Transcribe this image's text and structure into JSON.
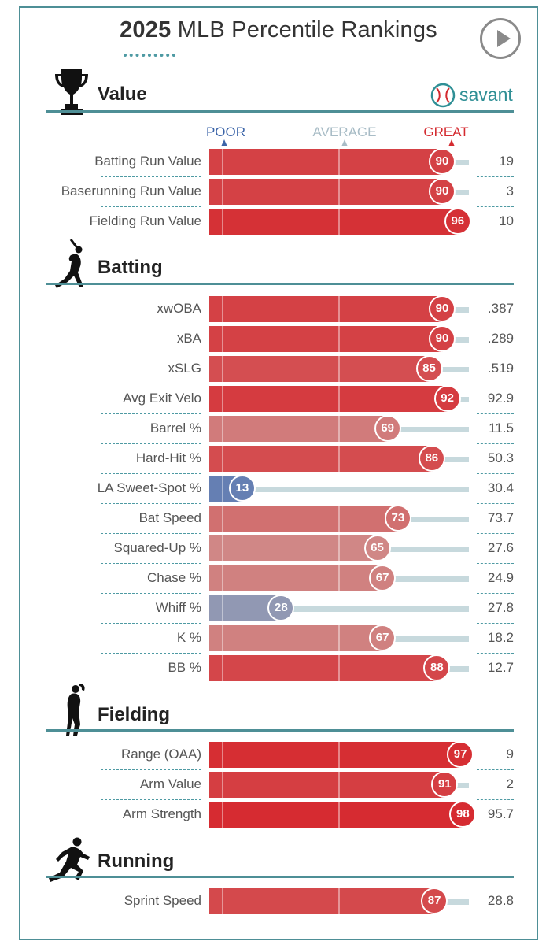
{
  "header": {
    "title_year": "2025",
    "title_rest": "MLB Percentile Rankings",
    "brand": "savant",
    "play_icon": "play-icon"
  },
  "scale": {
    "poor_label": "POOR",
    "average_label": "AVERAGE",
    "great_label": "GREAT",
    "poor_color": "#3b64a8",
    "average_color": "#a8bcc6",
    "great_color": "#d42a2f"
  },
  "sections": [
    {
      "title": "Value",
      "icon": "trophy-icon"
    },
    {
      "title": "Batting",
      "icon": "batter-silhouette-icon"
    },
    {
      "title": "Fielding",
      "icon": "fielder-silhouette-icon"
    },
    {
      "title": "Running",
      "icon": "runner-silhouette-icon"
    }
  ],
  "chart_data": {
    "type": "bar",
    "title": "2025 MLB Percentile Rankings",
    "xlim": [
      0,
      100
    ],
    "scale_labels": [
      "POOR",
      "AVERAGE",
      "GREAT"
    ],
    "groups": [
      {
        "name": "Value",
        "metrics": [
          {
            "label": "Batting Run Value",
            "percentile": 90,
            "value": "19"
          },
          {
            "label": "Baserunning Run Value",
            "percentile": 90,
            "value": "3"
          },
          {
            "label": "Fielding Run Value",
            "percentile": 96,
            "value": "10"
          }
        ]
      },
      {
        "name": "Batting",
        "metrics": [
          {
            "label": "xwOBA",
            "percentile": 90,
            "value": ".387"
          },
          {
            "label": "xBA",
            "percentile": 90,
            "value": ".289"
          },
          {
            "label": "xSLG",
            "percentile": 85,
            "value": ".519"
          },
          {
            "label": "Avg Exit Velo",
            "percentile": 92,
            "value": "92.9"
          },
          {
            "label": "Barrel %",
            "percentile": 69,
            "value": "11.5"
          },
          {
            "label": "Hard-Hit %",
            "percentile": 86,
            "value": "50.3"
          },
          {
            "label": "LA Sweet-Spot %",
            "percentile": 13,
            "value": "30.4"
          },
          {
            "label": "Bat Speed",
            "percentile": 73,
            "value": "73.7"
          },
          {
            "label": "Squared-Up %",
            "percentile": 65,
            "value": "27.6"
          },
          {
            "label": "Chase %",
            "percentile": 67,
            "value": "24.9"
          },
          {
            "label": "Whiff %",
            "percentile": 28,
            "value": "27.8"
          },
          {
            "label": "K %",
            "percentile": 67,
            "value": "18.2"
          },
          {
            "label": "BB %",
            "percentile": 88,
            "value": "12.7"
          }
        ]
      },
      {
        "name": "Fielding",
        "metrics": [
          {
            "label": "Range (OAA)",
            "percentile": 97,
            "value": "9"
          },
          {
            "label": "Arm Value",
            "percentile": 91,
            "value": "2"
          },
          {
            "label": "Arm Strength",
            "percentile": 98,
            "value": "95.7"
          }
        ]
      },
      {
        "name": "Running",
        "metrics": [
          {
            "label": "Sprint Speed",
            "percentile": 87,
            "value": "28.8"
          }
        ]
      }
    ]
  }
}
